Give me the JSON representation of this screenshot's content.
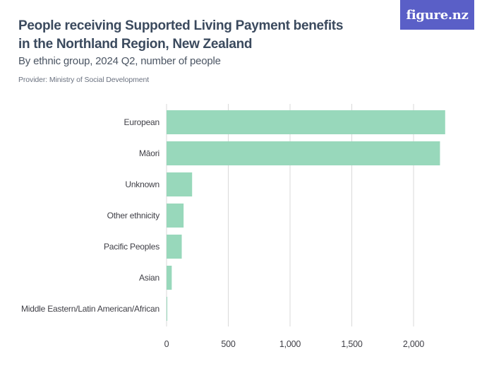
{
  "title": "People receiving Supported Living Payment benefits in the Northland Region, New Zealand",
  "subtitle": "By ethnic group, 2024 Q2, number of people",
  "provider": "Provider: Ministry of Social Development",
  "logo": "figure.nz",
  "colors": {
    "bar": "#98d8bb",
    "grid": "#d9d9d9",
    "logo_bg": "#5a5fc7"
  },
  "chart_data": {
    "type": "bar",
    "orientation": "horizontal",
    "categories": [
      "European",
      "Māori",
      "Unknown",
      "Other ethnicity",
      "Pacific Peoples",
      "Asian",
      "Middle Eastern/Latin American/African"
    ],
    "values": [
      2256,
      2214,
      207,
      138,
      123,
      42,
      6
    ],
    "xlim": [
      0,
      2400
    ],
    "xticks": [
      0,
      500,
      1000,
      1500,
      2000
    ],
    "xtick_labels": [
      "0",
      "500",
      "1,000",
      "1,500",
      "2,000"
    ],
    "grid": true
  }
}
